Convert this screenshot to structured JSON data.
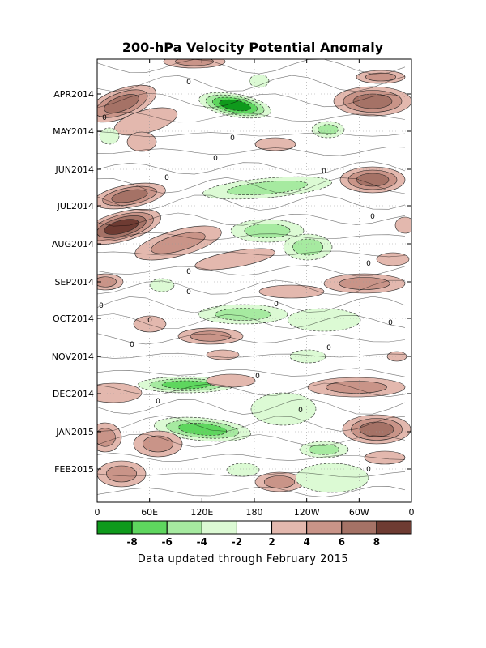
{
  "chart_data": {
    "type": "heatmap",
    "title": "200-hPa Velocity Potential Anomaly",
    "xlabel": "",
    "ylabel": "",
    "x_ticks": [
      "0",
      "60E",
      "120E",
      "180",
      "120W",
      "60W",
      "0"
    ],
    "x_range": [
      0,
      360
    ],
    "y_ticks": [
      "APR2014",
      "MAY2014",
      "JUN2014",
      "JUL2014",
      "AUG2014",
      "SEP2014",
      "OCT2014",
      "NOV2014",
      "DEC2014",
      "JAN2015",
      "FEB2015"
    ],
    "colorbar": {
      "labels": [
        "-8",
        "-6",
        "-4",
        "-2",
        "2",
        "4",
        "6",
        "8"
      ],
      "colors": [
        "#0f9a1c",
        "#5ed65e",
        "#a6eaa0",
        "#dcfad4",
        "#ffffff",
        "#e3b8ae",
        "#c99488",
        "#a57266",
        "#6e3b32"
      ]
    },
    "footer": "Data updated through February 2015",
    "contour_label": "0"
  }
}
